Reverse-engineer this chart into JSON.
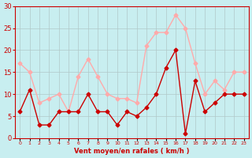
{
  "xlabel": "Vent moyen/en rafales ( km/h )",
  "background_color": "#c8eef0",
  "grid_color": "#b0c8c8",
  "x": [
    0,
    1,
    2,
    3,
    4,
    5,
    6,
    7,
    8,
    9,
    10,
    11,
    12,
    13,
    14,
    15,
    16,
    17,
    18,
    19,
    20,
    21,
    22,
    23
  ],
  "wind_mean": [
    6,
    11,
    3,
    3,
    6,
    6,
    6,
    10,
    6,
    6,
    3,
    6,
    5,
    7,
    10,
    16,
    20,
    1,
    13,
    6,
    8,
    10,
    10,
    10
  ],
  "wind_gust": [
    17,
    15,
    8,
    9,
    10,
    6,
    14,
    18,
    14,
    10,
    9,
    9,
    8,
    21,
    24,
    24,
    28,
    25,
    17,
    10,
    13,
    11,
    15,
    15
  ],
  "mean_color": "#cc0000",
  "gust_color": "#ffaaaa",
  "ylim": [
    0,
    30
  ],
  "yticks": [
    0,
    5,
    10,
    15,
    20,
    25,
    30
  ],
  "xticks": [
    0,
    1,
    2,
    3,
    4,
    5,
    6,
    7,
    8,
    9,
    10,
    11,
    12,
    13,
    14,
    15,
    16,
    17,
    18,
    19,
    20,
    21,
    22,
    23
  ],
  "marker_size": 2.5,
  "line_width": 1.0
}
